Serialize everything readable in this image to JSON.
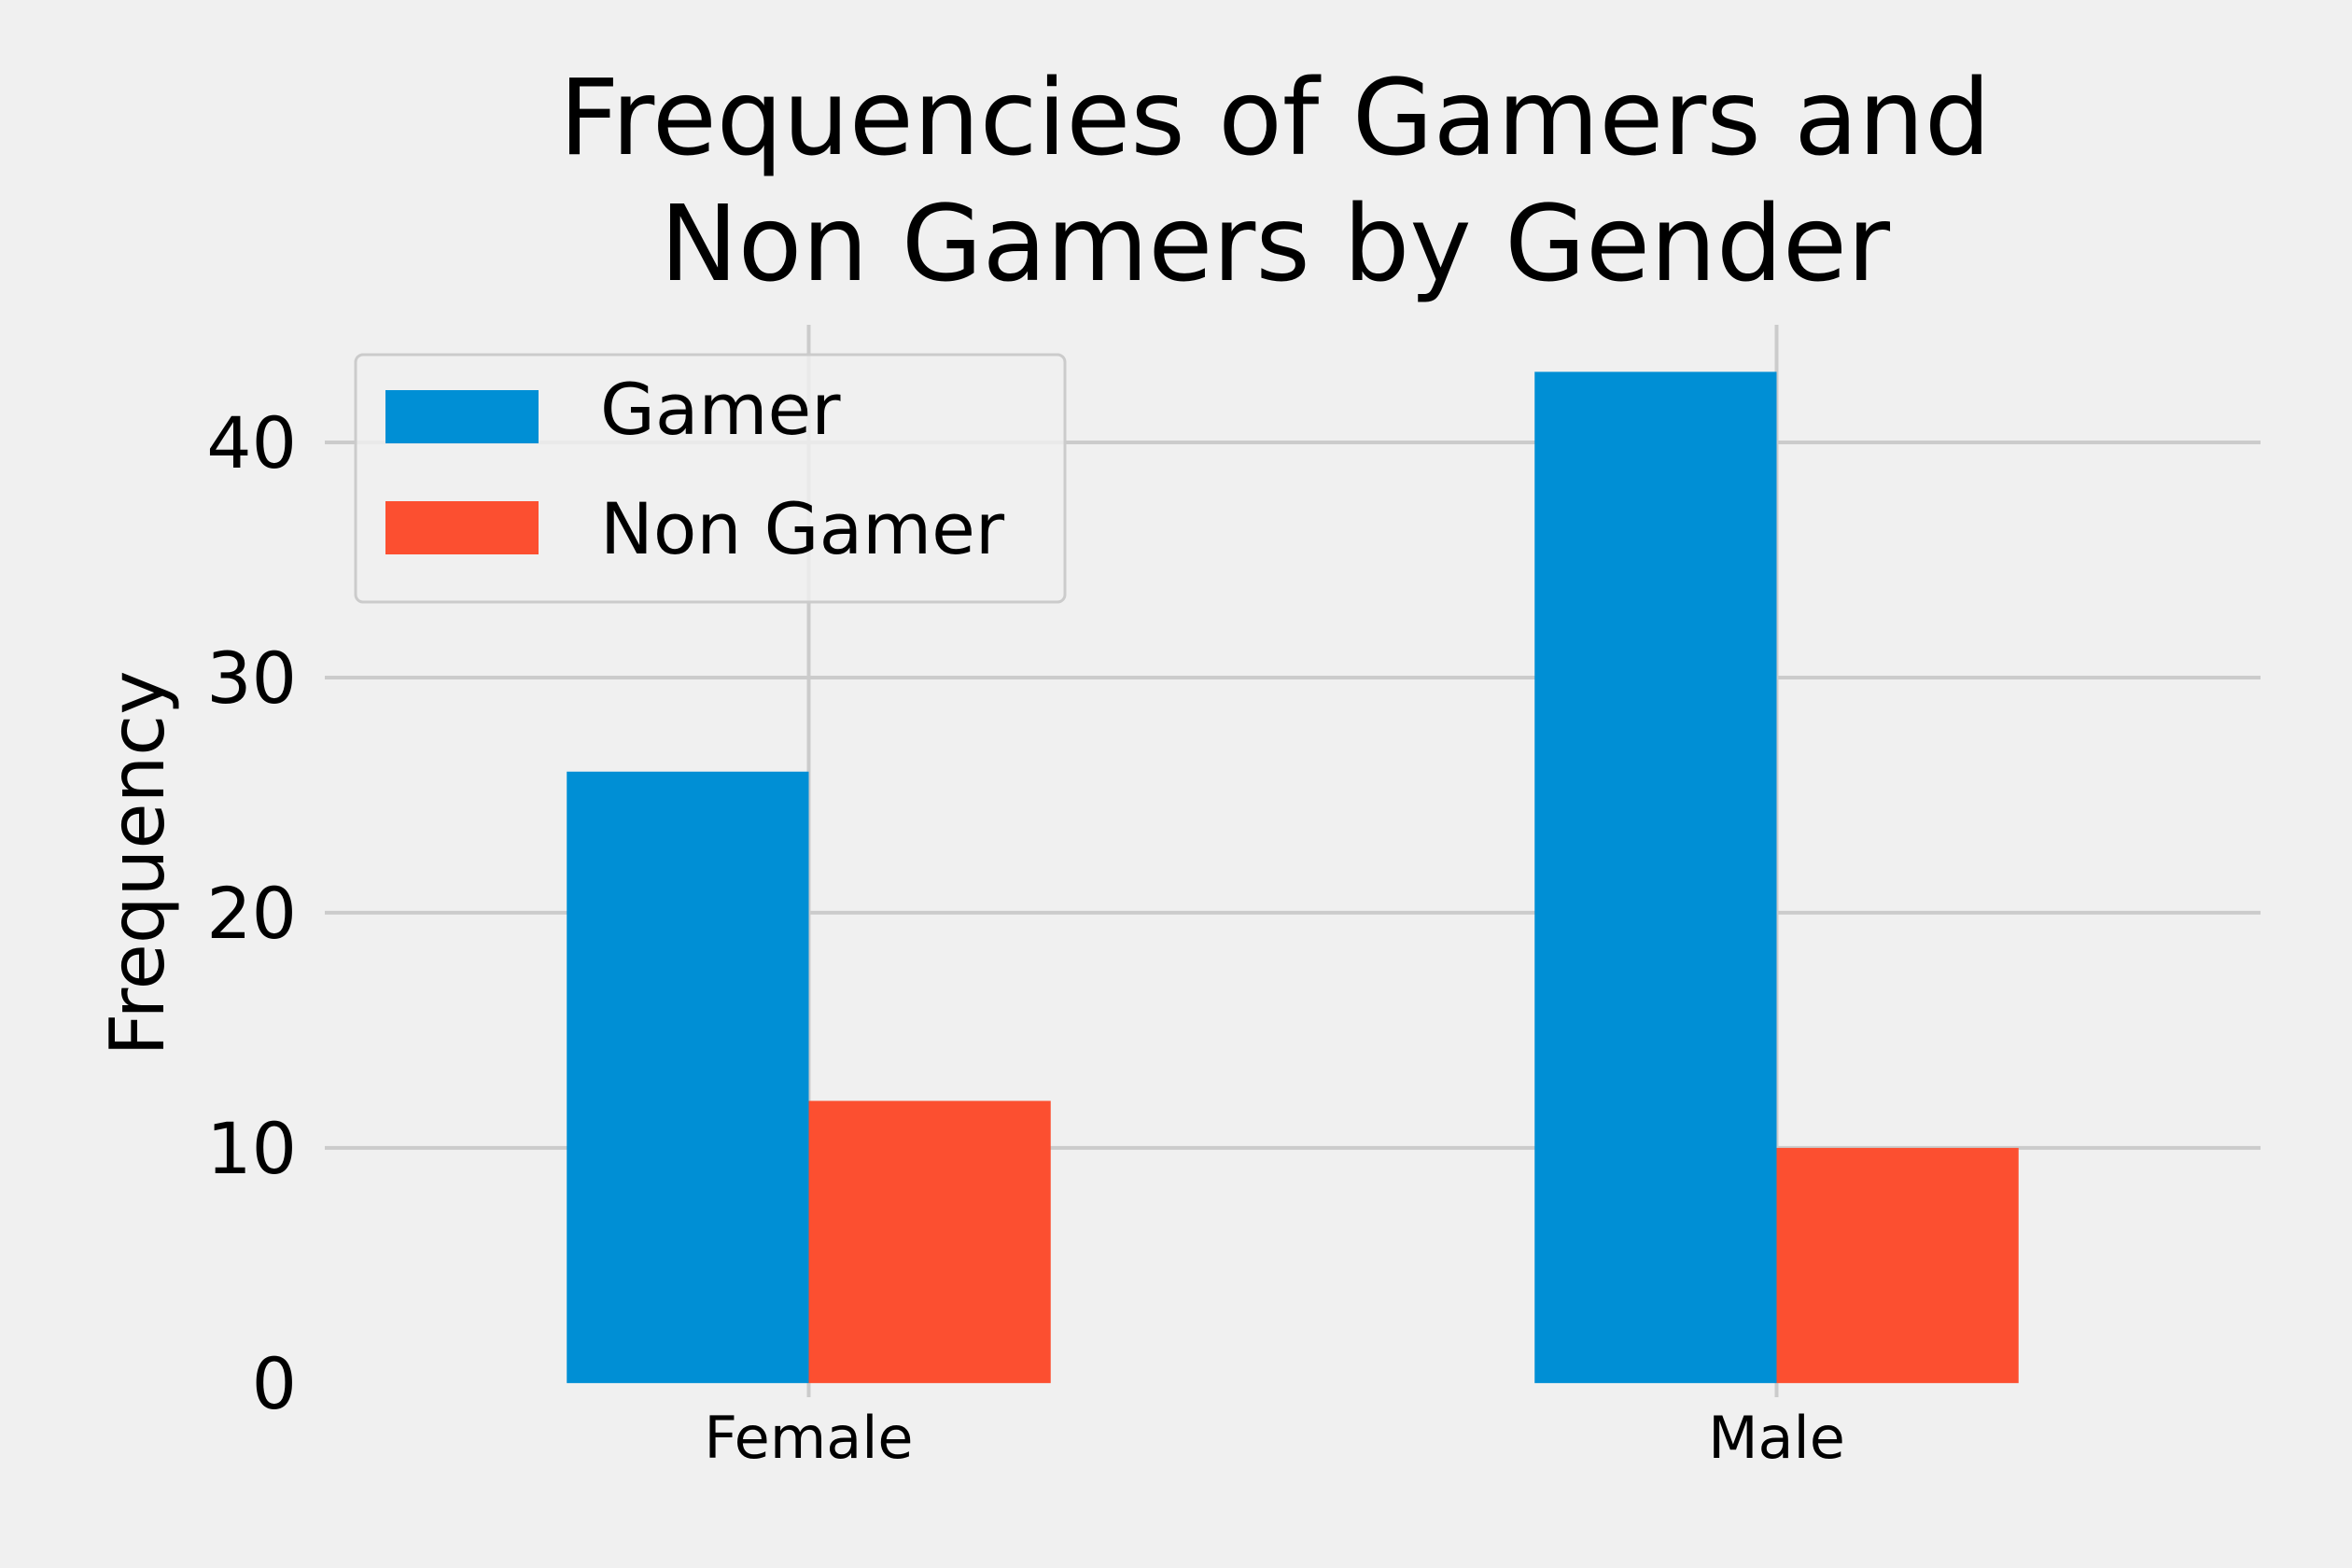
{
  "chart_data": {
    "type": "bar",
    "title": [
      "Frequencies of Gamers and",
      "Non Gamers by Gender"
    ],
    "xlabel": "",
    "ylabel": "Frequency",
    "categories": [
      "Female",
      "Male"
    ],
    "series": [
      {
        "name": "Gamer",
        "values": [
          26,
          43
        ]
      },
      {
        "name": "Non Gamer",
        "values": [
          12,
          10
        ]
      }
    ],
    "ylim": [
      -0.6,
      45
    ],
    "yticks": [
      0,
      10,
      20,
      30,
      40
    ],
    "ytick_labels": [
      "0",
      "10",
      "20",
      "30",
      "40"
    ],
    "grid": true,
    "legend_position": "upper left"
  },
  "colors": {
    "background": "#f0f0f0",
    "grid": "#cbcbcb",
    "text": "#000000",
    "series": [
      "#008fd5",
      "#fc4f30"
    ]
  }
}
